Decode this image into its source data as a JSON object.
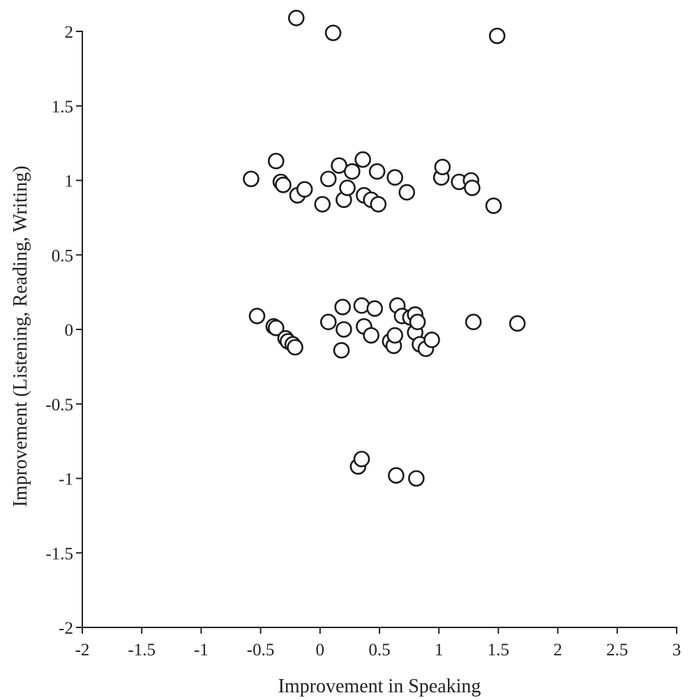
{
  "chart_data": {
    "type": "scatter",
    "title": "",
    "xlabel": "Improvement in Speaking",
    "ylabel": "Improvement (Listening, Reading, Writing)",
    "xlim": [
      -2,
      3
    ],
    "ylim": [
      -2,
      2
    ],
    "x_ticks": [
      -2,
      -1.5,
      -1,
      -0.5,
      0,
      0.5,
      1,
      1.5,
      2,
      2.5,
      3
    ],
    "y_ticks": [
      -2,
      -1.5,
      -1,
      -0.5,
      0,
      0.5,
      1,
      1.5,
      2
    ],
    "grid": false,
    "marker": "open circle",
    "colors": {
      "marker_fill": "#ffffff",
      "marker_edge": "#1a1a1a",
      "axis": "#222222"
    },
    "series": [
      {
        "x": [
          -0.2,
          0.11,
          1.49,
          -0.37,
          -0.58,
          -0.33,
          -0.31,
          -0.19,
          -0.13,
          0.02,
          0.07,
          0.16,
          0.2,
          0.23,
          0.27,
          0.36,
          0.37,
          0.43,
          0.48,
          0.49,
          0.63,
          0.73,
          1.02,
          1.03,
          1.17,
          1.27,
          1.28,
          1.46,
          -0.53,
          -0.39,
          -0.37,
          -0.29,
          -0.27,
          -0.23,
          -0.21,
          0.07,
          0.18,
          0.19,
          0.2,
          0.35,
          0.37,
          0.43,
          0.46,
          0.59,
          0.62,
          0.63,
          0.65,
          0.69,
          0.76,
          0.8,
          0.8,
          0.82,
          0.84,
          0.89,
          0.94,
          1.29,
          1.66,
          0.32,
          0.35,
          0.64,
          0.81
        ],
        "y": [
          2.09,
          1.99,
          1.97,
          1.13,
          1.01,
          0.99,
          0.97,
          0.9,
          0.94,
          0.84,
          1.01,
          1.1,
          0.87,
          0.95,
          1.06,
          1.14,
          0.9,
          0.87,
          1.06,
          0.84,
          1.02,
          0.92,
          1.02,
          1.09,
          0.99,
          1.0,
          0.95,
          0.83,
          0.09,
          0.02,
          0.01,
          -0.06,
          -0.08,
          -0.1,
          -0.12,
          0.05,
          -0.14,
          0.15,
          0.0,
          0.16,
          0.02,
          -0.04,
          0.14,
          -0.08,
          -0.11,
          -0.04,
          0.16,
          0.09,
          0.08,
          0.1,
          -0.02,
          0.05,
          -0.1,
          -0.13,
          -0.07,
          0.05,
          0.04,
          -0.92,
          -0.87,
          -0.98,
          -1.0
        ]
      }
    ]
  }
}
